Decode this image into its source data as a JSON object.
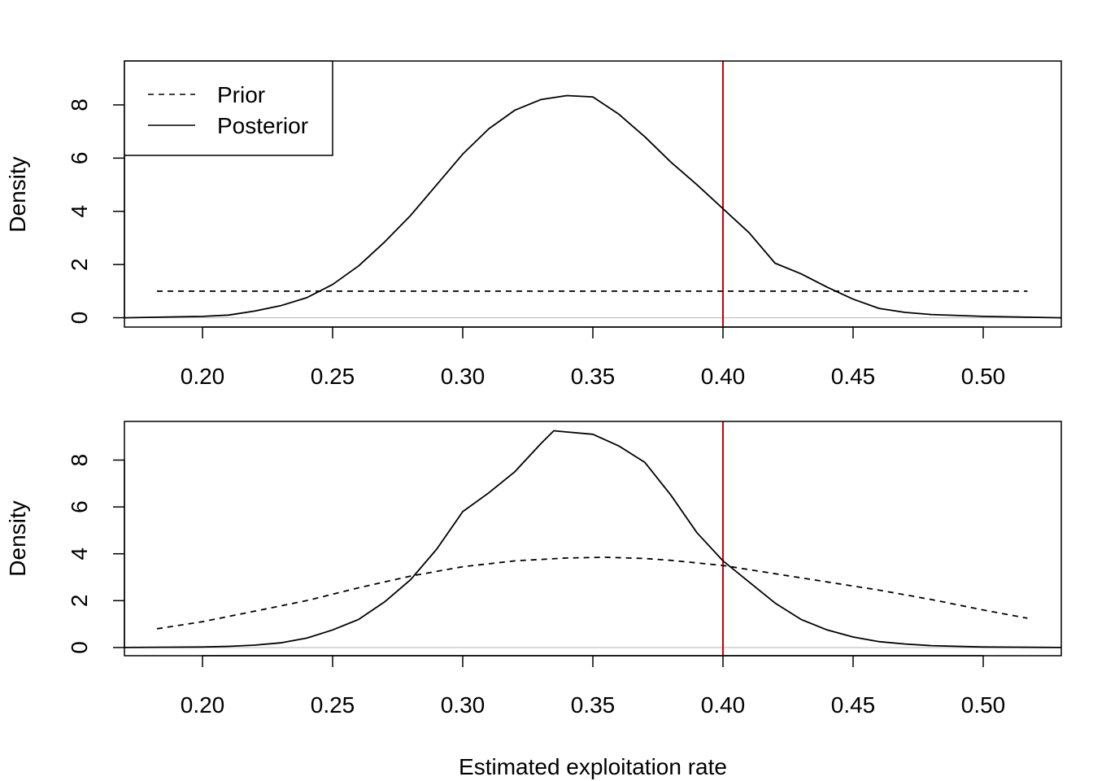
{
  "figure": {
    "xlabel": "Estimated exploitation rate"
  },
  "chart_data": [
    {
      "type": "line",
      "panel": "top",
      "ylabel": "Density",
      "xlabel": "",
      "xlim": [
        0.17,
        0.53
      ],
      "ylim": [
        -0.35,
        9.65
      ],
      "x_ticks": [
        0.2,
        0.25,
        0.3,
        0.35,
        0.4,
        0.45,
        0.5
      ],
      "x_tick_labels": [
        "0.20",
        "0.25",
        "0.30",
        "0.35",
        "0.40",
        "0.45",
        "0.50"
      ],
      "y_ticks": [
        0,
        2,
        4,
        6,
        8
      ],
      "y_tick_labels": [
        "0",
        "2",
        "4",
        "6",
        "8"
      ],
      "baseline": 0,
      "vline": {
        "x": 0.4,
        "color": "#cc0000"
      },
      "legend": {
        "position": "top-left",
        "entries": [
          "Prior",
          "Posterior"
        ]
      },
      "series": [
        {
          "name": "Prior",
          "style": "dashed",
          "x": [
            0.1825,
            0.517
          ],
          "y": [
            1.0,
            1.0
          ]
        },
        {
          "name": "Posterior",
          "style": "solid",
          "x": [
            0.17,
            0.2,
            0.21,
            0.22,
            0.23,
            0.24,
            0.25,
            0.26,
            0.27,
            0.28,
            0.29,
            0.3,
            0.31,
            0.32,
            0.33,
            0.34,
            0.35,
            0.36,
            0.37,
            0.38,
            0.39,
            0.4,
            0.41,
            0.42,
            0.43,
            0.44,
            0.45,
            0.46,
            0.47,
            0.48,
            0.5,
            0.53
          ],
          "y": [
            0.0,
            0.05,
            0.1,
            0.25,
            0.45,
            0.75,
            1.25,
            1.95,
            2.85,
            3.85,
            5.0,
            6.15,
            7.1,
            7.8,
            8.2,
            8.35,
            8.3,
            7.65,
            6.8,
            5.85,
            5.0,
            4.1,
            3.2,
            2.05,
            1.65,
            1.15,
            0.7,
            0.35,
            0.2,
            0.12,
            0.05,
            0.0
          ]
        }
      ]
    },
    {
      "type": "line",
      "panel": "bottom",
      "ylabel": "Density",
      "xlabel": "Estimated exploitation rate",
      "xlim": [
        0.17,
        0.53
      ],
      "ylim": [
        -0.35,
        9.65
      ],
      "x_ticks": [
        0.2,
        0.25,
        0.3,
        0.35,
        0.4,
        0.45,
        0.5
      ],
      "x_tick_labels": [
        "0.20",
        "0.25",
        "0.30",
        "0.35",
        "0.40",
        "0.45",
        "0.50"
      ],
      "y_ticks": [
        0,
        2,
        4,
        6,
        8
      ],
      "y_tick_labels": [
        "0",
        "2",
        "4",
        "6",
        "8"
      ],
      "baseline": 0,
      "vline": {
        "x": 0.4,
        "color": "#cc0000"
      },
      "series": [
        {
          "name": "Prior",
          "style": "dashed",
          "x": [
            0.1825,
            0.2,
            0.22,
            0.24,
            0.26,
            0.28,
            0.3,
            0.32,
            0.34,
            0.355,
            0.37,
            0.38,
            0.4,
            0.42,
            0.44,
            0.46,
            0.48,
            0.5,
            0.517
          ],
          "y": [
            0.8,
            1.1,
            1.55,
            2.0,
            2.55,
            3.05,
            3.45,
            3.7,
            3.82,
            3.85,
            3.8,
            3.72,
            3.5,
            3.15,
            2.8,
            2.45,
            2.05,
            1.6,
            1.25
          ]
        },
        {
          "name": "Posterior",
          "style": "solid",
          "x": [
            0.17,
            0.2,
            0.21,
            0.22,
            0.23,
            0.24,
            0.25,
            0.26,
            0.27,
            0.28,
            0.29,
            0.3,
            0.31,
            0.32,
            0.33,
            0.335,
            0.34,
            0.35,
            0.36,
            0.37,
            0.38,
            0.39,
            0.4,
            0.41,
            0.42,
            0.43,
            0.44,
            0.45,
            0.46,
            0.47,
            0.48,
            0.5,
            0.53
          ],
          "y": [
            0.0,
            0.02,
            0.05,
            0.1,
            0.2,
            0.4,
            0.75,
            1.2,
            1.95,
            2.9,
            4.2,
            5.8,
            6.6,
            7.5,
            8.7,
            9.25,
            9.2,
            9.1,
            8.6,
            7.9,
            6.5,
            4.9,
            3.7,
            2.8,
            1.9,
            1.2,
            0.75,
            0.45,
            0.25,
            0.15,
            0.08,
            0.02,
            0.0
          ]
        }
      ]
    }
  ]
}
